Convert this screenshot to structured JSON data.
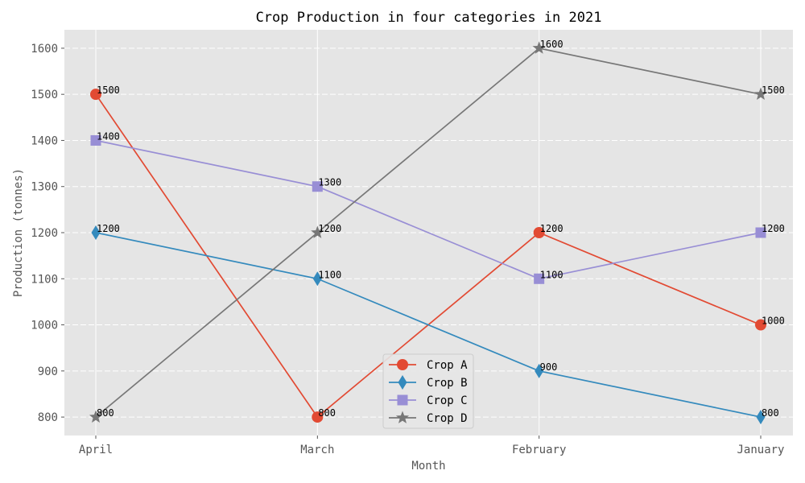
{
  "chart_data": {
    "type": "line",
    "title": "Crop Production in four categories in 2021",
    "xlabel": "Month",
    "ylabel": "Production (tonnes)",
    "categories": [
      "April",
      "March",
      "February",
      "January"
    ],
    "ylim": [
      760,
      1640
    ],
    "yticks": [
      800,
      900,
      1000,
      1100,
      1200,
      1300,
      1400,
      1500,
      1600
    ],
    "grid": true,
    "legend_position": "bottom-center",
    "series": [
      {
        "name": "Crop A",
        "values": [
          1500,
          800,
          1200,
          1000
        ],
        "color": "#E24A33",
        "marker": "circle"
      },
      {
        "name": "Crop B",
        "values": [
          1200,
          1100,
          900,
          800
        ],
        "color": "#348ABD",
        "marker": "diamond"
      },
      {
        "name": "Crop C",
        "values": [
          1400,
          1300,
          1100,
          1200
        ],
        "color": "#988ED5",
        "marker": "square"
      },
      {
        "name": "Crop D",
        "values": [
          800,
          1200,
          1600,
          1500
        ],
        "color": "#777777",
        "marker": "star"
      }
    ]
  }
}
